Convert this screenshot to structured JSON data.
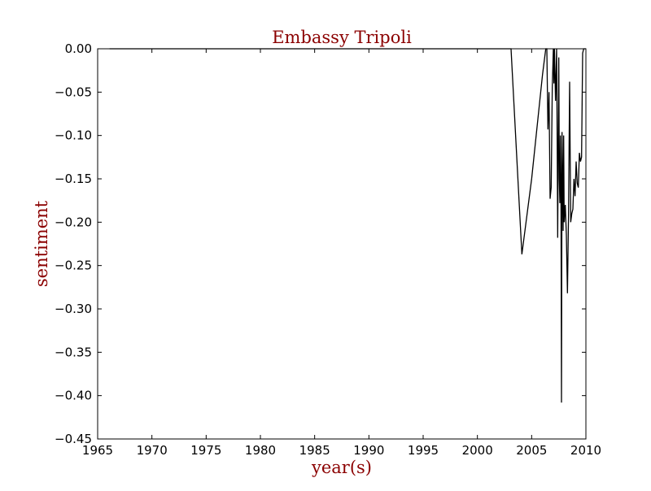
{
  "chart_data": {
    "type": "line",
    "title": "Embassy Tripoli",
    "xlabel": "year(s)",
    "ylabel": "sentiment",
    "xlim": [
      1965,
      2010
    ],
    "ylim": [
      -0.45,
      0.0
    ],
    "xticks": [
      1965,
      1970,
      1975,
      1980,
      1985,
      1990,
      1995,
      2000,
      2005,
      2010
    ],
    "yticks": [
      0.0,
      -0.05,
      -0.1,
      -0.15,
      -0.2,
      -0.25,
      -0.3,
      -0.35,
      -0.4,
      -0.45
    ],
    "ytick_labels": [
      "0.00",
      "−0.05",
      "−0.10",
      "−0.15",
      "−0.20",
      "−0.25",
      "−0.30",
      "−0.35",
      "−0.40",
      "−0.45"
    ],
    "xtick_labels": [
      "1965",
      "1970",
      "1975",
      "1980",
      "1985",
      "1990",
      "1995",
      "2000",
      "2005",
      "2010"
    ],
    "grid": false,
    "legend": "none",
    "line_color": "#000000",
    "label_color": "#8b0000",
    "series": [
      {
        "x": [
          1966.1,
          2003.1,
          2004.1,
          2005.0,
          2006.0,
          2006.3,
          2006.4,
          2006.5,
          2006.6,
          2006.7,
          2006.8,
          2006.9,
          2007.0,
          2007.05,
          2007.1,
          2007.2,
          2007.3,
          2007.35,
          2007.4,
          2007.5,
          2007.55,
          2007.6,
          2007.65,
          2007.7,
          2007.75,
          2007.8,
          2007.85,
          2007.9,
          2007.95,
          2008.0,
          2008.1,
          2008.2,
          2008.3,
          2008.4,
          2008.5,
          2008.6,
          2008.7,
          2008.8,
          2008.9,
          2009.0,
          2009.1,
          2009.2,
          2009.3,
          2009.4,
          2009.5,
          2009.6,
          2009.7,
          2009.8,
          2009.9,
          2010.0
        ],
        "y": [
          0.0,
          0.0,
          -0.237,
          -0.15,
          -0.03,
          0.0,
          0.0,
          -0.093,
          -0.05,
          -0.173,
          -0.16,
          -0.045,
          0.0,
          -0.04,
          0.0,
          -0.06,
          0.0,
          -0.1,
          -0.218,
          -0.01,
          -0.15,
          -0.178,
          -0.1,
          -0.15,
          -0.408,
          -0.096,
          -0.15,
          -0.21,
          -0.1,
          -0.2,
          -0.18,
          -0.215,
          -0.282,
          -0.19,
          -0.038,
          -0.2,
          -0.19,
          -0.185,
          -0.15,
          -0.17,
          -0.13,
          -0.155,
          -0.16,
          -0.12,
          -0.13,
          -0.125,
          -0.005,
          0.0,
          0.0,
          0.0
        ]
      }
    ]
  }
}
